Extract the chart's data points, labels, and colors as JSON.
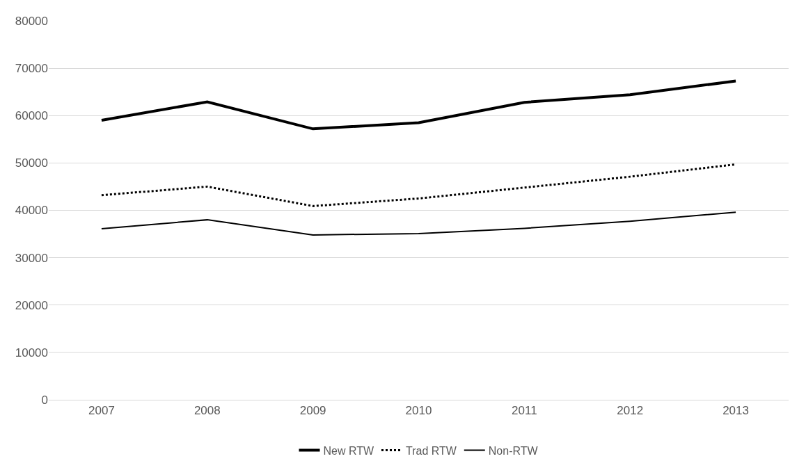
{
  "chart_data": {
    "type": "line",
    "categories": [
      "2007",
      "2008",
      "2009",
      "2010",
      "2011",
      "2012",
      "2013"
    ],
    "series": [
      {
        "name": "New RTW",
        "color": "#000000",
        "line_style": "solid",
        "values": [
          59000,
          62900,
          57200,
          58500,
          62800,
          64400,
          67300
        ]
      },
      {
        "name": "Trad RTW",
        "color": "#000000",
        "line_style": "dotted",
        "values": [
          43200,
          45000,
          40900,
          42500,
          44800,
          47100,
          49700
        ]
      },
      {
        "name": "Non-RTW",
        "color": "#000000",
        "line_style": "solid",
        "values": [
          36100,
          38000,
          34800,
          35100,
          36200,
          37700,
          39600
        ]
      }
    ],
    "ylim": [
      0,
      80000
    ],
    "yticks": [
      0,
      10000,
      20000,
      30000,
      40000,
      50000,
      60000,
      70000,
      80000
    ],
    "grid": "y",
    "legend": "bottom",
    "marker": "none"
  }
}
